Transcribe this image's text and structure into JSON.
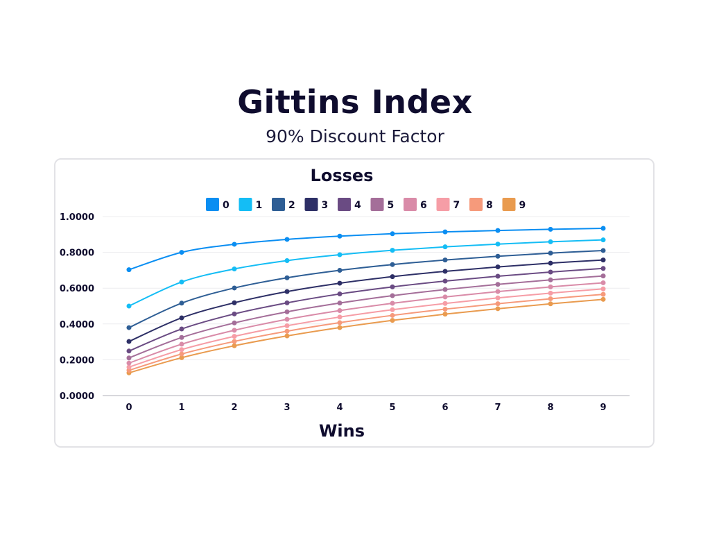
{
  "chart_data": {
    "type": "line",
    "title": "Gittins Index",
    "subtitle": "90% Discount Factor",
    "legend_title": "Losses",
    "legend_placement": "top",
    "xlabel": "Wins",
    "ylabel": "",
    "x": [
      0,
      1,
      2,
      3,
      4,
      5,
      6,
      7,
      8,
      9
    ],
    "ylim": [
      0,
      1
    ],
    "yticks": [
      "0.0000",
      "0.2000",
      "0.4000",
      "0.6000",
      "0.8000",
      "1.0000"
    ],
    "grid": true,
    "series": [
      {
        "name": "0",
        "color": "#0a8ef2",
        "values": [
          0.7029,
          0.8001,
          0.8452,
          0.8723,
          0.8905,
          0.9039,
          0.9141,
          0.9221,
          0.9287,
          0.9342
        ]
      },
      {
        "name": "1",
        "color": "#14bdf5",
        "values": [
          0.5001,
          0.6346,
          0.7072,
          0.7539,
          0.7869,
          0.8115,
          0.8307,
          0.8461,
          0.8588,
          0.8695
        ]
      },
      {
        "name": "2",
        "color": "#2e5e95",
        "values": [
          0.3796,
          0.5163,
          0.601,
          0.6579,
          0.6996,
          0.7318,
          0.7573,
          0.7782,
          0.7956,
          0.8103
        ]
      },
      {
        "name": "3",
        "color": "#2d2f66",
        "values": [
          0.3021,
          0.4342,
          0.5184,
          0.5809,
          0.6276,
          0.6642,
          0.694,
          0.7187,
          0.7396,
          0.7573
        ]
      },
      {
        "name": "4",
        "color": "#6a4b83",
        "values": [
          0.2488,
          0.372,
          0.4561,
          0.5179,
          0.5676,
          0.6071,
          0.6395,
          0.6666,
          0.6899,
          0.7101
        ]
      },
      {
        "name": "5",
        "color": "#a46e99",
        "values": [
          0.2103,
          0.3245,
          0.4058,
          0.4677,
          0.5168,
          0.5581,
          0.5923,
          0.6212,
          0.6461,
          0.668
        ]
      },
      {
        "name": "6",
        "color": "#d98ba8",
        "values": [
          0.1815,
          0.2871,
          0.3647,
          0.4257,
          0.4748,
          0.5156,
          0.551,
          0.5811,
          0.6071,
          0.63
        ]
      },
      {
        "name": "7",
        "color": "#f69da6",
        "values": [
          0.1591,
          0.2569,
          0.3308,
          0.39,
          0.4387,
          0.4795,
          0.5144,
          0.5454,
          0.5723,
          0.596
        ]
      },
      {
        "name": "8",
        "color": "#f69a7b",
        "values": [
          0.1413,
          0.2323,
          0.3025,
          0.3595,
          0.4073,
          0.4479,
          0.4828,
          0.5132,
          0.5409,
          0.5654
        ]
      },
      {
        "name": "9",
        "color": "#e99b4f",
        "values": [
          0.1269,
          0.2116,
          0.2784,
          0.3332,
          0.3799,
          0.42,
          0.4548,
          0.4852,
          0.5125,
          0.5375
        ]
      }
    ]
  }
}
